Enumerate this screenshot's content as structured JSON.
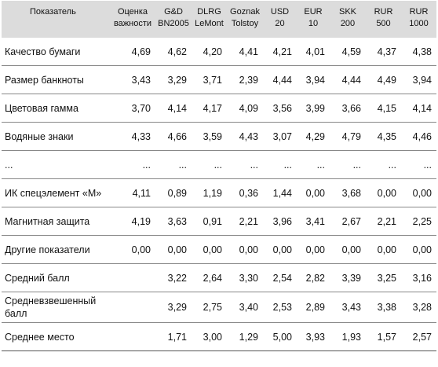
{
  "header": {
    "label_col": "Показатель",
    "columns": [
      {
        "line1": "Оценка",
        "line2": "важности"
      },
      {
        "line1": "G&D",
        "line2": "BN2005"
      },
      {
        "line1": "DLRG",
        "line2": "LeMont"
      },
      {
        "line1": "Goznak",
        "line2": "Tolstoy"
      },
      {
        "line1": "USD",
        "line2": "20"
      },
      {
        "line1": "EUR",
        "line2": "10"
      },
      {
        "line1": "SKK",
        "line2": "200"
      },
      {
        "line1": "RUR",
        "line2": "500"
      },
      {
        "line1": "RUR",
        "line2": "1000"
      }
    ]
  },
  "rows": [
    {
      "label": "Качество бумаги",
      "values": [
        "4,69",
        "4,62",
        "4,20",
        "4,41",
        "4,21",
        "4,01",
        "4,59",
        "4,37",
        "4,38"
      ]
    },
    {
      "label": "Размер банкноты",
      "values": [
        "3,43",
        "3,29",
        "3,71",
        "2,39",
        "4,44",
        "3,94",
        "4,44",
        "4,49",
        "3,94"
      ]
    },
    {
      "label": "Цветовая гамма",
      "values": [
        "3,70",
        "4,14",
        "4,17",
        "4,09",
        "3,56",
        "3,99",
        "3,66",
        "4,15",
        "4,14"
      ]
    },
    {
      "label": "Водяные знаки",
      "values": [
        "4,33",
        "4,66",
        "3,59",
        "4,43",
        "3,07",
        "4,29",
        "4,79",
        "4,35",
        "4,46"
      ]
    },
    {
      "label": "...",
      "values": [
        "...",
        "...",
        "...",
        "...",
        "...",
        "...",
        "...",
        "...",
        "..."
      ]
    },
    {
      "label": "ИК спецэлемент «М»",
      "values": [
        "4,11",
        "0,89",
        "1,19",
        "0,36",
        "1,44",
        "0,00",
        "3,68",
        "0,00",
        "0,00"
      ]
    },
    {
      "label": "Магнитная защита",
      "values": [
        "4,19",
        "3,63",
        "0,91",
        "2,21",
        "3,96",
        "3,41",
        "2,67",
        "2,21",
        "2,25"
      ]
    },
    {
      "label": "Другие показатели",
      "values": [
        "0,00",
        "0,00",
        "0,00",
        "0,00",
        "0,00",
        "0,00",
        "0,00",
        "0,00",
        "0,00"
      ]
    },
    {
      "label": "Средний балл",
      "values": [
        "",
        "3,22",
        "2,64",
        "3,30",
        "2,54",
        "2,82",
        "3,39",
        "3,25",
        "3,16"
      ]
    },
    {
      "label": "Средневзвешенный балл",
      "values": [
        "",
        "3,29",
        "2,75",
        "3,40",
        "2,53",
        "2,89",
        "3,43",
        "3,38",
        "3,28"
      ]
    },
    {
      "label": "Среднее место",
      "values": [
        "",
        "1,71",
        "3,00",
        "1,29",
        "5,00",
        "3,93",
        "1,93",
        "1,57",
        "2,57"
      ]
    }
  ]
}
